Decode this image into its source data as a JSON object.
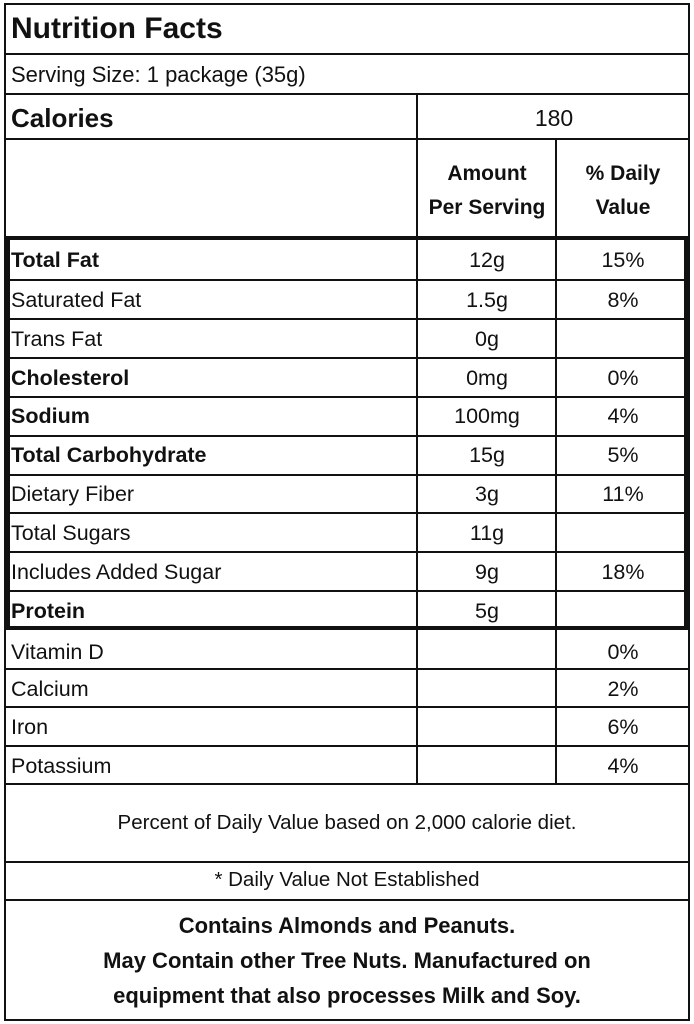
{
  "title": "Nutrition Facts",
  "serving_size": "Serving Size: 1 package (35g)",
  "calories": {
    "label": "Calories",
    "value": "180"
  },
  "headers": {
    "amount_line1": "Amount",
    "amount_line2": "Per Serving",
    "dv_line1": "% Daily",
    "dv_line2": "Value"
  },
  "nutrients": [
    {
      "name": "Total Fat",
      "amount": "12g",
      "dv": "15%",
      "bold": true
    },
    {
      "name": "Saturated Fat",
      "amount": "1.5g",
      "dv": "8%",
      "bold": false
    },
    {
      "name": "Trans Fat",
      "amount": "0g",
      "dv": "",
      "bold": false
    },
    {
      "name": "Cholesterol",
      "amount": "0mg",
      "dv": "0%",
      "bold": true
    },
    {
      "name": "Sodium",
      "amount": "100mg",
      "dv": "4%",
      "bold": true
    },
    {
      "name": "Total Carbohydrate",
      "amount": "15g",
      "dv": "5%",
      "bold": true
    },
    {
      "name": "Dietary Fiber",
      "amount": "3g",
      "dv": "11%",
      "bold": false
    },
    {
      "name": "Total Sugars",
      "amount": "11g",
      "dv": "",
      "bold": false
    },
    {
      "name": "Includes Added Sugar",
      "amount": "9g",
      "dv": "18%",
      "bold": false
    },
    {
      "name": "Protein",
      "amount": "5g",
      "dv": "",
      "bold": true
    }
  ],
  "vitamins": [
    {
      "name": "Vitamin D",
      "amount": "",
      "dv": "0%"
    },
    {
      "name": "Calcium",
      "amount": "",
      "dv": "2%"
    },
    {
      "name": "Iron",
      "amount": "",
      "dv": "6%"
    },
    {
      "name": "Potassium",
      "amount": "",
      "dv": "4%"
    }
  ],
  "footnote_dv": "Percent of Daily Value based on 2,000 calorie diet.",
  "footnote_not_established": "* Daily Value Not Established",
  "allergen": {
    "line1": "Contains Almonds and Peanuts.",
    "line2": "May Contain other Tree Nuts.  Manufactured on",
    "line3": "equipment that also processes Milk and Soy."
  }
}
